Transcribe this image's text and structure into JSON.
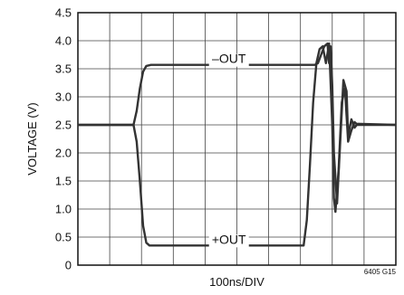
{
  "chart_data": {
    "type": "line",
    "title": "",
    "xlabel": "100ns/DIV",
    "ylabel": "VOLTAGE (V)",
    "figure_code": "6405 G15",
    "xlim": [
      0,
      10
    ],
    "ylim": [
      0,
      4.5
    ],
    "x_divisions": 10,
    "y_ticks": [
      "0",
      "0.5",
      "1.0",
      "1.5",
      "2.0",
      "2.5",
      "3.0",
      "3.5",
      "4.0",
      "4.5"
    ],
    "grid": true,
    "series": [
      {
        "name": "–OUT",
        "color": "#333333",
        "points": [
          [
            0,
            2.5
          ],
          [
            1.75,
            2.5
          ],
          [
            1.85,
            2.75
          ],
          [
            1.95,
            3.15
          ],
          [
            2.05,
            3.45
          ],
          [
            2.15,
            3.55
          ],
          [
            2.3,
            3.57
          ],
          [
            7.45,
            3.57
          ],
          [
            7.55,
            3.6
          ],
          [
            7.65,
            3.75
          ],
          [
            7.75,
            3.9
          ],
          [
            7.85,
            3.95
          ],
          [
            7.9,
            3.6
          ],
          [
            7.95,
            3.9
          ],
          [
            8.0,
            3.2
          ],
          [
            8.05,
            2.0
          ],
          [
            8.15,
            1.1
          ],
          [
            8.25,
            2.2
          ],
          [
            8.35,
            3.3
          ],
          [
            8.45,
            3.1
          ],
          [
            8.5,
            2.3
          ],
          [
            8.6,
            2.6
          ],
          [
            8.7,
            2.45
          ],
          [
            8.8,
            2.52
          ],
          [
            10,
            2.5
          ]
        ]
      },
      {
        "name": "+OUT",
        "color": "#333333",
        "points": [
          [
            0,
            2.5
          ],
          [
            1.75,
            2.5
          ],
          [
            1.85,
            2.2
          ],
          [
            1.95,
            1.5
          ],
          [
            2.05,
            0.7
          ],
          [
            2.15,
            0.4
          ],
          [
            2.25,
            0.35
          ],
          [
            7.1,
            0.35
          ],
          [
            7.2,
            0.8
          ],
          [
            7.3,
            1.8
          ],
          [
            7.4,
            2.9
          ],
          [
            7.5,
            3.6
          ],
          [
            7.6,
            3.85
          ],
          [
            7.7,
            3.9
          ],
          [
            7.8,
            3.6
          ],
          [
            7.9,
            3.95
          ],
          [
            8.0,
            2.5
          ],
          [
            8.05,
            1.2
          ],
          [
            8.1,
            0.95
          ],
          [
            8.2,
            1.7
          ],
          [
            8.3,
            2.9
          ],
          [
            8.4,
            3.15
          ],
          [
            8.5,
            2.2
          ],
          [
            8.6,
            2.4
          ],
          [
            8.7,
            2.55
          ],
          [
            8.8,
            2.5
          ],
          [
            10,
            2.5
          ]
        ]
      }
    ]
  }
}
